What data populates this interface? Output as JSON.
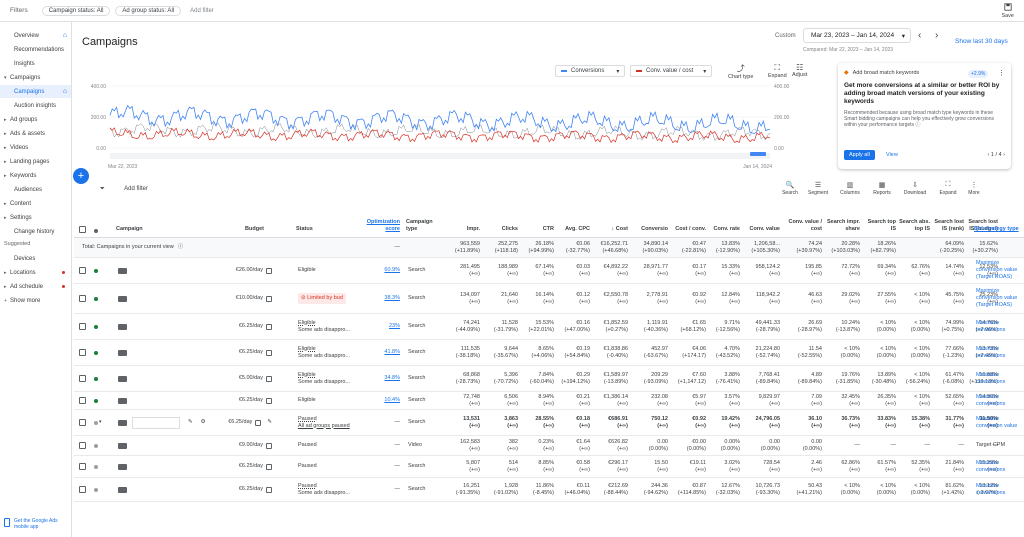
{
  "topbar": {
    "filters_label": "Filters",
    "chips": [
      "Campaign status: All",
      "Ad group status: All"
    ],
    "add_filter": "Add filter",
    "save_label": "Save"
  },
  "sidebar": {
    "items": [
      {
        "label": "Overview",
        "home": true
      },
      {
        "label": "Recommendations"
      },
      {
        "label": "Insights"
      },
      {
        "label": "Campaigns",
        "caret": "▾"
      },
      {
        "label": "Campaigns",
        "active": true,
        "home": true
      },
      {
        "label": "Auction insights"
      },
      {
        "label": "Ad groups",
        "caret": "▸"
      },
      {
        "label": "Ads & assets",
        "caret": "▸"
      },
      {
        "label": "Videos",
        "caret": "▸"
      },
      {
        "label": "Landing pages",
        "caret": "▸"
      },
      {
        "label": "Keywords",
        "caret": "▸"
      },
      {
        "label": "Audiences"
      },
      {
        "label": "Content",
        "caret": "▸"
      },
      {
        "label": "Settings",
        "caret": "▸"
      },
      {
        "label": "Change history"
      }
    ],
    "suggested_label": "Suggested",
    "suggested": [
      {
        "label": "Devices"
      },
      {
        "label": "Locations",
        "caret": "▸",
        "alert": true
      },
      {
        "label": "Ad schedule",
        "caret": "▸",
        "alert": true
      }
    ],
    "show_more": "Show more",
    "app_promo": "Get the Google Ads mobile app"
  },
  "page": {
    "title": "Campaigns",
    "custom_label": "Custom",
    "date_range": "Mar 23, 2023 – Jan 14, 2024",
    "compared": "Compared: Mar 22, 2023 – Jan 14, 2023",
    "show_last": "Show last 30 days"
  },
  "chart": {
    "metric1": "Conversions",
    "metric2": "Conv. value / cost",
    "metric1_color": "#4285f4",
    "metric2_color": "#d93025",
    "y_left": [
      "400.00",
      "200.00",
      "0.00"
    ],
    "y_right": [
      "400.00",
      "200.00",
      "0.00"
    ],
    "x_start": "Mar 22, 2023",
    "x_end": "Jan 14, 2024",
    "tools": [
      "Chart type",
      "Expand",
      "Adjust"
    ]
  },
  "reco": {
    "tag": "Add broad match keywords",
    "badge": "+2.9%",
    "title": "Get more conversions at a similar or better ROI by adding broad match versions of your existing keywords",
    "body": "Recommended because using broad match type keywords in these Smart bidding campaigns can help you effectively grow conversions within your performance targets ⓘ",
    "apply": "Apply all",
    "view": "View",
    "pager": "1 / 4"
  },
  "toolbar": {
    "add_filter": "Add filter",
    "tools": [
      "Search",
      "Segment",
      "Columns",
      "Reports",
      "Download",
      "Expand",
      "More"
    ]
  },
  "table": {
    "headers": [
      "Campaign",
      "Budget",
      "Status",
      "Optimization score",
      "Campaign type",
      "Impr.",
      "Clicks",
      "CTR",
      "Avg. CPC",
      "↓ Cost",
      "Conversio",
      "Cost / conv.",
      "Conv. rate",
      "Conv. value",
      "Conv. value / cost",
      "Search impr. share",
      "Search top IS",
      "Search abs. top IS",
      "Search lost IS (rank)",
      "Search lost IS (budget)",
      "Bid strategy type"
    ],
    "total_label": "Total: Campaigns in your current view",
    "total": [
      "963,559\n(+11.89%)",
      "252,275\n(+118.18)",
      "26.18%\n(+94.99%)",
      "€0.06\n(-32.77%)",
      "€16,252.71\n(+46.68%)",
      "34,890.14\n(+90.03%)",
      "€0.47\n(-22.81%)",
      "13.83%\n(-12.90%)",
      "1,206,58...\n(+105.30%)",
      "74.24\n(+39.97%)",
      "20.28%\n(+103.03%)",
      "18.26%\n(+82.79%)",
      "",
      "64.09%\n(-20.25%)",
      "15.62%\n(+30.27%)"
    ],
    "rows": [
      {
        "budget": "€26.00/day",
        "status": "Eligible",
        "opt": "60.9%",
        "type": "Search",
        "vals": [
          "281,495\n(+∞)",
          "188,989\n(+∞)",
          "67.14%\n(+∞)",
          "€0.03\n(+∞)",
          "€4,892.22\n(+∞)",
          "28,971.77\n(+∞)",
          "€0.17\n(+∞)",
          "15.33%\n(+∞)",
          "958,124.2\n(+∞)",
          "195.85\n(+∞)",
          "72.72%\n(+∞)",
          "69.34%\n(+∞)",
          "62.76%\n(+∞)",
          "14.74%\n(+∞)",
          "12.53%\n(+∞)"
        ],
        "bid": "Maximize conversion value (Target ROAS)"
      },
      {
        "budget": "€10.00/day",
        "status": "Limited by bud",
        "limited": true,
        "opt": "38.3%",
        "type": "Search",
        "vals": [
          "134,097\n(+∞)",
          "21,640\n(+∞)",
          "16.14%\n(+∞)",
          "€0.12\n(+∞)",
          "€2,550.78\n(+∞)",
          "2,778.91\n(+∞)",
          "€0.92\n(+∞)",
          "12.84%\n(+∞)",
          "118,942.2\n(+∞)",
          "46.63\n(+∞)",
          "29.02%\n(+∞)",
          "27.55%\n(+∞)",
          "< 10%\n(+∞)",
          "45.75%\n(+∞)",
          "25.23%\n(+∞)"
        ],
        "bid": "Maximize conversion value (Target ROAS)"
      },
      {
        "budget": "€6.25/day",
        "status": "Eligible",
        "status2": "Some ads disappro...",
        "opt": "23%",
        "type": "Search",
        "vals": [
          "74,241\n(-44.09%)",
          "11,528\n(-31.79%)",
          "15.53%\n(+22.01%)",
          "€0.16\n(+47.00%)",
          "€1,852.59\n(+0.27%)",
          "1,119.91\n(-40.36%)",
          "€1.65\n(+68.12%)",
          "9.71%\n(-12.56%)",
          "49,441.33\n(-28.79%)",
          "26.69\n(-28.97%)",
          "10.24%\n(-13.87%)",
          "< 10%\n(0.00%)",
          "< 10%\n(0.00%)",
          "74.99%\n(+0.75%)",
          "14.76%\n(+7.96%)"
        ],
        "bid": "Maximize conversions"
      },
      {
        "budget": "€6.25/day",
        "status": "Eligible",
        "status2": "Some ads disappro...",
        "opt": "41.8%",
        "type": "Search",
        "vals": [
          "111,535\n(-38.18%)",
          "9,644\n(-35.67%)",
          "8.65%\n(+4.06%)",
          "€0.19\n(+54.84%)",
          "€1,838.86\n(-0.40%)",
          "452.97\n(-63.67%)",
          "€4.06\n(+174.17)",
          "4.70%\n(-43.52%)",
          "21,224.80\n(-52.74%)",
          "11.54\n(-52.55%)",
          "< 10%\n(0.00%)",
          "< 10%\n(0.00%)",
          "< 10%\n(0.00%)",
          "77.66%\n(-1.23%)",
          "13.73%\n(+7.45%)"
        ],
        "bid": "Maximize conversions"
      },
      {
        "budget": "€5.00/day",
        "status": "Eligible",
        "status2": "Some ads disappro...",
        "opt": "34.8%",
        "type": "Search",
        "vals": [
          "68,868\n(-28.73%)",
          "5,396\n(-70.72%)",
          "7.84%\n(-60.04%)",
          "€0.29\n(+194.12%)",
          "€1,589.97\n(-13.89%)",
          "209.29\n(-93.09%)",
          "€7.60\n(+1,147.12)",
          "3.88%\n(-76.41%)",
          "7,768.41\n(-89.84%)",
          "4.89\n(-89.84%)",
          "19.76%\n(-31.85%)",
          "13.89%\n(-30.48%)",
          "< 10%\n(-56.24%)",
          "61.47%\n(-6.08%)",
          "16.68%\n(+136.13%)"
        ],
        "bid": "Maximize conversions"
      },
      {
        "budget": "€6.25/day",
        "status": "Eligible",
        "opt": "10.4%",
        "type": "Search",
        "vals": [
          "72,748\n(+∞)",
          "6,506\n(+∞)",
          "8.94%\n(+∞)",
          "€0.21\n(+∞)",
          "€1,386.14\n(+∞)",
          "232.08\n(+∞)",
          "€5.97\n(+∞)",
          "3.57%\n(+∞)",
          "9,829.97\n(+∞)",
          "7.09\n(+∞)",
          "32.45%\n(+∞)",
          "26.35%\n(+∞)",
          "< 10%\n(+∞)",
          "52.65%\n(+∞)",
          "14.90%\n(+∞)"
        ],
        "bid": "Maximize conversions"
      },
      {
        "budget": "€6.25/day",
        "status": "Paused",
        "status2": "All ad groups paused",
        "opt": "—",
        "type": "Search",
        "paused": true,
        "editing": true,
        "bold": true,
        "vals": [
          "13,531\n(+∞)",
          "3,863\n(+∞)",
          "28.55%\n(+∞)",
          "€0.18\n(+∞)",
          "€686.91\n(+∞)",
          "750.12\n(+∞)",
          "€0.92\n(+∞)",
          "19.42%\n(+∞)",
          "24,796.05\n(+∞)",
          "36.10\n(+∞)",
          "36.73%\n(+∞)",
          "33.83%\n(+∞)",
          "15.38%\n(+∞)",
          "31.77%\n(+∞)",
          "31.50%\n(+∞)"
        ],
        "bid": "Maximize conversion value"
      },
      {
        "budget": "€9.00/day",
        "status": "Paused",
        "opt": "—",
        "type": "Video",
        "paused": true,
        "vals": [
          "162,583\n(+∞)",
          "382\n(+∞)",
          "0.23%\n(+∞)",
          "€1.64\n(+∞)",
          "€626.82\n(+∞)",
          "0.00\n(0.00%)",
          "€0.00\n(0.00%)",
          "0.00%\n(0.00%)",
          "0.00\n(0.00%)",
          "0.00\n(0.00%)",
          "—",
          "—",
          "—",
          "—",
          "—"
        ],
        "bid": "Target CPM"
      },
      {
        "budget": "€6.25/day",
        "status": "Paused",
        "opt": "—",
        "type": "Search",
        "paused": true,
        "vals": [
          "5,807\n(+∞)",
          "514\n(+∞)",
          "8.85%\n(+∞)",
          "€0.58\n(+∞)",
          "€296.17\n(+∞)",
          "15.50\n(+∞)",
          "€19.11\n(+∞)",
          "3.02%\n(+∞)",
          "728.54\n(+∞)",
          "2.46\n(+∞)",
          "62.86%\n(+∞)",
          "61.57%\n(+∞)",
          "52.35%\n(+∞)",
          "21.84%\n(+∞)",
          "15.29%\n(+∞)"
        ],
        "bid": "Maximize conversions"
      },
      {
        "budget": "€6.25/day",
        "status": "Paused",
        "status2": "Some ads disappro...",
        "opt": "—",
        "type": "Search",
        "paused": true,
        "vals": [
          "16,251\n(-91.35%)",
          "1,928\n(-91.02%)",
          "11.86%\n(-8.45%)",
          "€0.11\n(+46.04%)",
          "€212.69\n(-88.44%)",
          "244.36\n(-94.62%)",
          "€0.87\n(+114.85%)",
          "12.67%\n(-32.03%)",
          "10,726.73\n(-93.30%)",
          "50.43\n(+41.21%)",
          "< 10%\n(0.00%)",
          "< 10%\n(0.00%)",
          "< 10%\n(0.00%)",
          "81.62%\n(+1.42%)",
          "13.12%\n(-3.67%)"
        ],
        "bid": "Maximize conversions"
      }
    ]
  }
}
